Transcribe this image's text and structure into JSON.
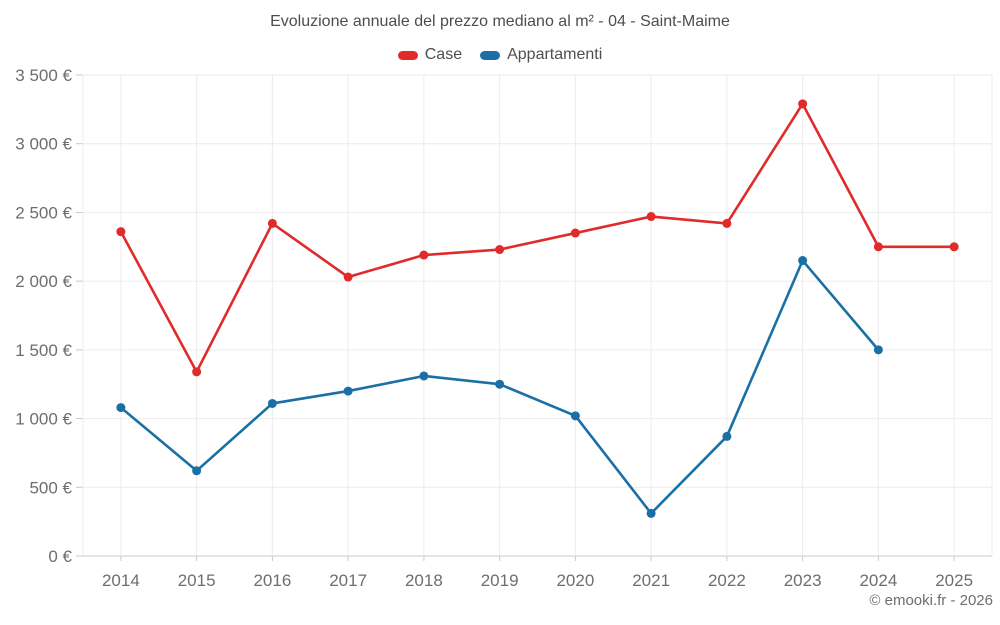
{
  "footer": {
    "attribution": "© emooki.fr - 2026"
  },
  "chart_data": {
    "type": "line",
    "title": "Evoluzione annuale del prezzo mediano al m² - 04 - Saint-Maime",
    "xlabel": "",
    "ylabel": "",
    "categories": [
      "2014",
      "2015",
      "2016",
      "2017",
      "2018",
      "2019",
      "2020",
      "2021",
      "2022",
      "2023",
      "2024",
      "2025"
    ],
    "series": [
      {
        "name": "Case",
        "color": "#e02b2b",
        "values": [
          2360,
          1340,
          2420,
          2030,
          2190,
          2230,
          2350,
          2470,
          2420,
          3290,
          2250,
          2250
        ]
      },
      {
        "name": "Appartamenti",
        "color": "#1a6fa5",
        "values": [
          1080,
          620,
          1110,
          1200,
          1310,
          1250,
          1020,
          310,
          870,
          2150,
          1500,
          null
        ]
      }
    ],
    "ylim": [
      0,
      3500
    ],
    "yticks": [
      0,
      500,
      1000,
      1500,
      2000,
      2500,
      3000,
      3500
    ],
    "ytick_labels": [
      "0 €",
      "500 €",
      "1 000 €",
      "1 500 €",
      "2 000 €",
      "2 500 €",
      "3 000 €",
      "3 500 €"
    ],
    "grid": true,
    "legend_position": "top",
    "colors": {
      "gridline": "#ececec",
      "axis_line": "#c9c9c9",
      "tick": "#c9c9c9"
    }
  }
}
